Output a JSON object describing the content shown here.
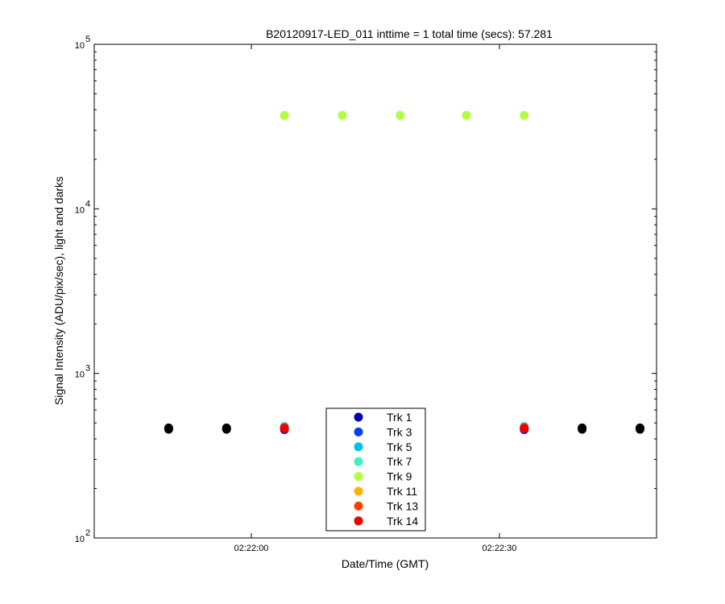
{
  "chart_data": {
    "type": "scatter",
    "title": "B20120917-LED_011 inttime = 1 total time (secs): 57.281",
    "xlabel": "Date/Time (GMT)",
    "ylabel": "Signal Intensity (ADU/pix/sec), light and darks",
    "yscale": "log",
    "ylim": [
      100,
      100000
    ],
    "xlim": [
      "02:21:41",
      "02:22:49"
    ],
    "y_ticks": [
      {
        "base": "10",
        "exp": "2"
      },
      {
        "base": "10",
        "exp": "3"
      },
      {
        "base": "10",
        "exp": "4"
      },
      {
        "base": "10",
        "exp": "5"
      }
    ],
    "x_ticks": [
      "02:22:00",
      "02:22:30"
    ],
    "grid": false,
    "legend_position": "bottom-center",
    "series": [
      {
        "name": "Trk 1",
        "color": "#0000b0",
        "x": [
          "02:22:04",
          "02:22:11",
          "02:22:33"
        ],
        "y": [
          455,
          455,
          455
        ]
      },
      {
        "name": "Trk 3",
        "color": "#0040f0",
        "x": [
          "02:22:04",
          "02:22:11",
          "02:22:33"
        ],
        "y": [
          460,
          460,
          460
        ]
      },
      {
        "name": "Trk 5",
        "color": "#00c0f0",
        "x": [
          "02:22:04",
          "02:22:11",
          "02:22:33"
        ],
        "y": [
          475,
          475,
          475
        ]
      },
      {
        "name": "Trk 7",
        "color": "#40f0c0",
        "x": [],
        "y": []
      },
      {
        "name": "Trk 9",
        "color": "#b0ff40",
        "x": [
          "02:22:04",
          "02:22:11",
          "02:22:18",
          "02:22:26",
          "02:22:33"
        ],
        "y": [
          37000,
          37000,
          37000,
          37000,
          37000
        ]
      },
      {
        "name": "Trk 11",
        "color": "#ffb000",
        "x": [],
        "y": []
      },
      {
        "name": "Trk 13",
        "color": "#ff4000",
        "x": [
          "02:22:04",
          "02:22:11",
          "02:22:33"
        ],
        "y": [
          468,
          468,
          468
        ]
      },
      {
        "name": "Trk 14",
        "color": "#f00000",
        "x": [
          "02:22:04",
          "02:22:11",
          "02:22:33"
        ],
        "y": [
          463,
          463,
          463
        ]
      },
      {
        "color": "#000000",
        "x": [
          "02:21:50",
          "02:21:57",
          "02:22:40",
          "02:22:47"
        ],
        "y": [
          458,
          458,
          458,
          458
        ]
      },
      {
        "color": "#000000",
        "x": [
          "02:21:50",
          "02:21:57",
          "02:22:40",
          "02:22:47"
        ],
        "y": [
          466,
          466,
          466,
          466
        ]
      }
    ]
  }
}
